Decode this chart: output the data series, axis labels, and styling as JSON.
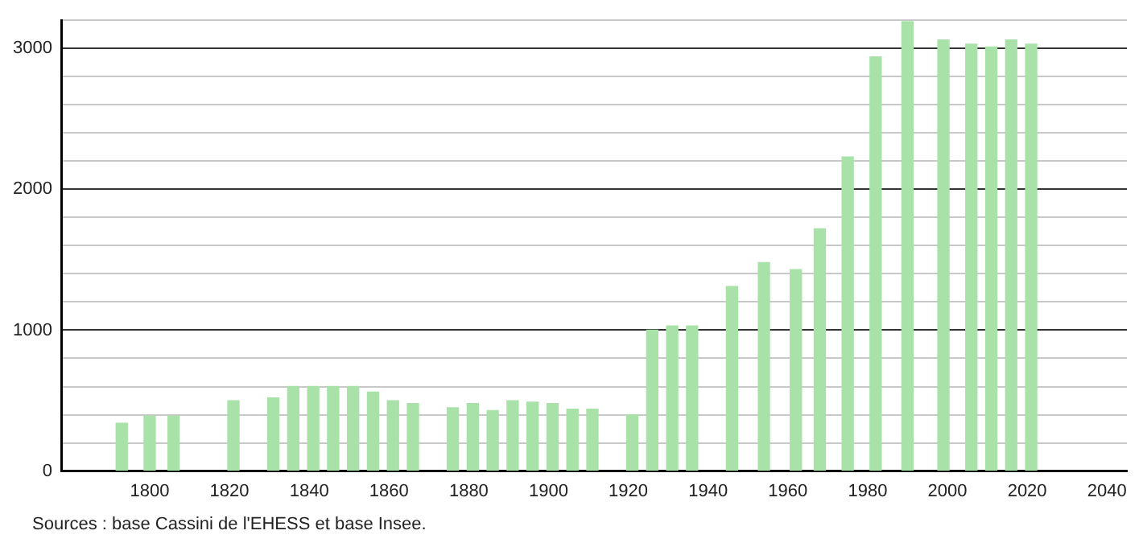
{
  "chart_data": {
    "type": "bar",
    "x": [
      1793,
      1800,
      1806,
      1821,
      1831,
      1836,
      1841,
      1846,
      1851,
      1856,
      1861,
      1866,
      1876,
      1881,
      1886,
      1891,
      1896,
      1901,
      1906,
      1911,
      1921,
      1926,
      1931,
      1936,
      1946,
      1954,
      1962,
      1968,
      1975,
      1982,
      1990,
      1999,
      2006,
      2011,
      2016,
      2021
    ],
    "values": [
      340,
      390,
      390,
      500,
      520,
      600,
      600,
      600,
      600,
      560,
      500,
      480,
      450,
      480,
      430,
      500,
      490,
      480,
      440,
      440,
      400,
      1000,
      1030,
      1030,
      1310,
      1480,
      1430,
      1720,
      2230,
      2940,
      3190,
      3060,
      3030,
      3010,
      3060,
      3030
    ],
    "color": "#a8e2a8",
    "xlim": [
      1778,
      2045
    ],
    "xticks": [
      1800,
      1820,
      1840,
      1860,
      1880,
      1900,
      1920,
      1940,
      1960,
      1980,
      2000,
      2020,
      2040
    ],
    "ylim": [
      0,
      3200
    ],
    "yticks": [
      0,
      {
        "value": 200,
        "label": null
      },
      {
        "value": 400,
        "label": null
      },
      {
        "value": 600,
        "label": null
      },
      {
        "value": 800,
        "label": null
      },
      1000,
      {
        "value": 1200,
        "label": null
      },
      {
        "value": 1400,
        "label": null
      },
      {
        "value": 1600,
        "label": null
      },
      {
        "value": 1800,
        "label": null
      },
      2000,
      {
        "value": 2200,
        "label": null
      },
      {
        "value": 2400,
        "label": null
      },
      {
        "value": 2600,
        "label": null
      },
      {
        "value": 2800,
        "label": null
      },
      3000,
      {
        "value": 3200,
        "label": null
      }
    ],
    "grid": "y",
    "legend": false,
    "annotations": [
      "Sources : base Cassini de l'EHESS et base Insee."
    ]
  }
}
